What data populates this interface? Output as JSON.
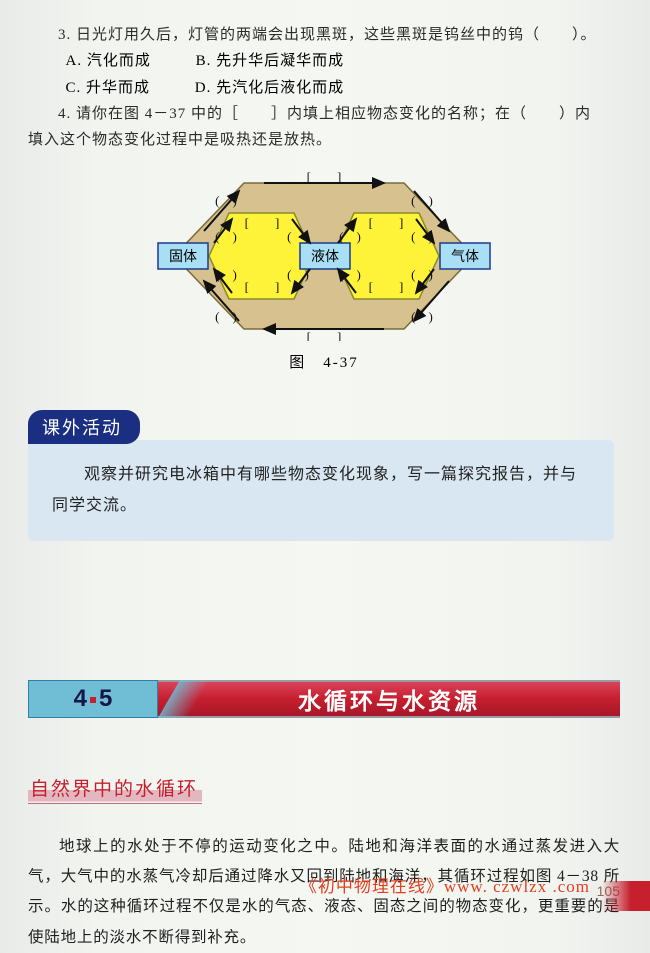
{
  "q3": {
    "stem": "3. 日光灯用久后，灯管的两端会出现黑斑，这些黑斑是钨丝中的钨（　　）。",
    "optA": "A. 汽化而成",
    "optB": "B. 先升华后凝华而成",
    "optC": "C. 升华而成",
    "optD": "D. 先汽化后液化而成"
  },
  "q4": {
    "line1": "4. 请你在图 4－37 中的［　　］内填上相应物态变化的名称；在（　　）内",
    "line2": "填入这个物态变化过程中是吸热还是放热。"
  },
  "diagram": {
    "caption": "图　4-37",
    "nodes": {
      "solid": "固体",
      "liquid": "液体",
      "gas": "气体"
    },
    "colors": {
      "outerFill": "#d6c18f",
      "outerStroke": "#7a6a38",
      "midFill": "#fff33a",
      "midStroke": "#8a8a2a",
      "boxFill": "#a9dff5",
      "boxStroke": "#1a3a8a",
      "arrow": "#111111",
      "bracket": "#111111"
    }
  },
  "activity": {
    "badge": "课外活动",
    "text1": "观察并研究电冰箱中有哪些物态变化现象，写一篇探究报告，并与",
    "text2": "同学交流。"
  },
  "section": {
    "num1": "4",
    "num2": "5",
    "title": "水循环与水资源"
  },
  "subhead": "自然界中的水循环",
  "body": "地球上的水处于不停的运动变化之中。陆地和海洋表面的水通过蒸发进入大气，大气中的水蒸气冷却后通过降水又回到陆地和海洋，其循环过程如图 4－38 所示。水的这种循环过程不仅是水的气态、液态、固态之间的物态变化，更重要的是使陆地上的淡水不断得到补充。",
  "watermark": "《初中物理在线》www. czwlzx .com",
  "pageNum": "105"
}
